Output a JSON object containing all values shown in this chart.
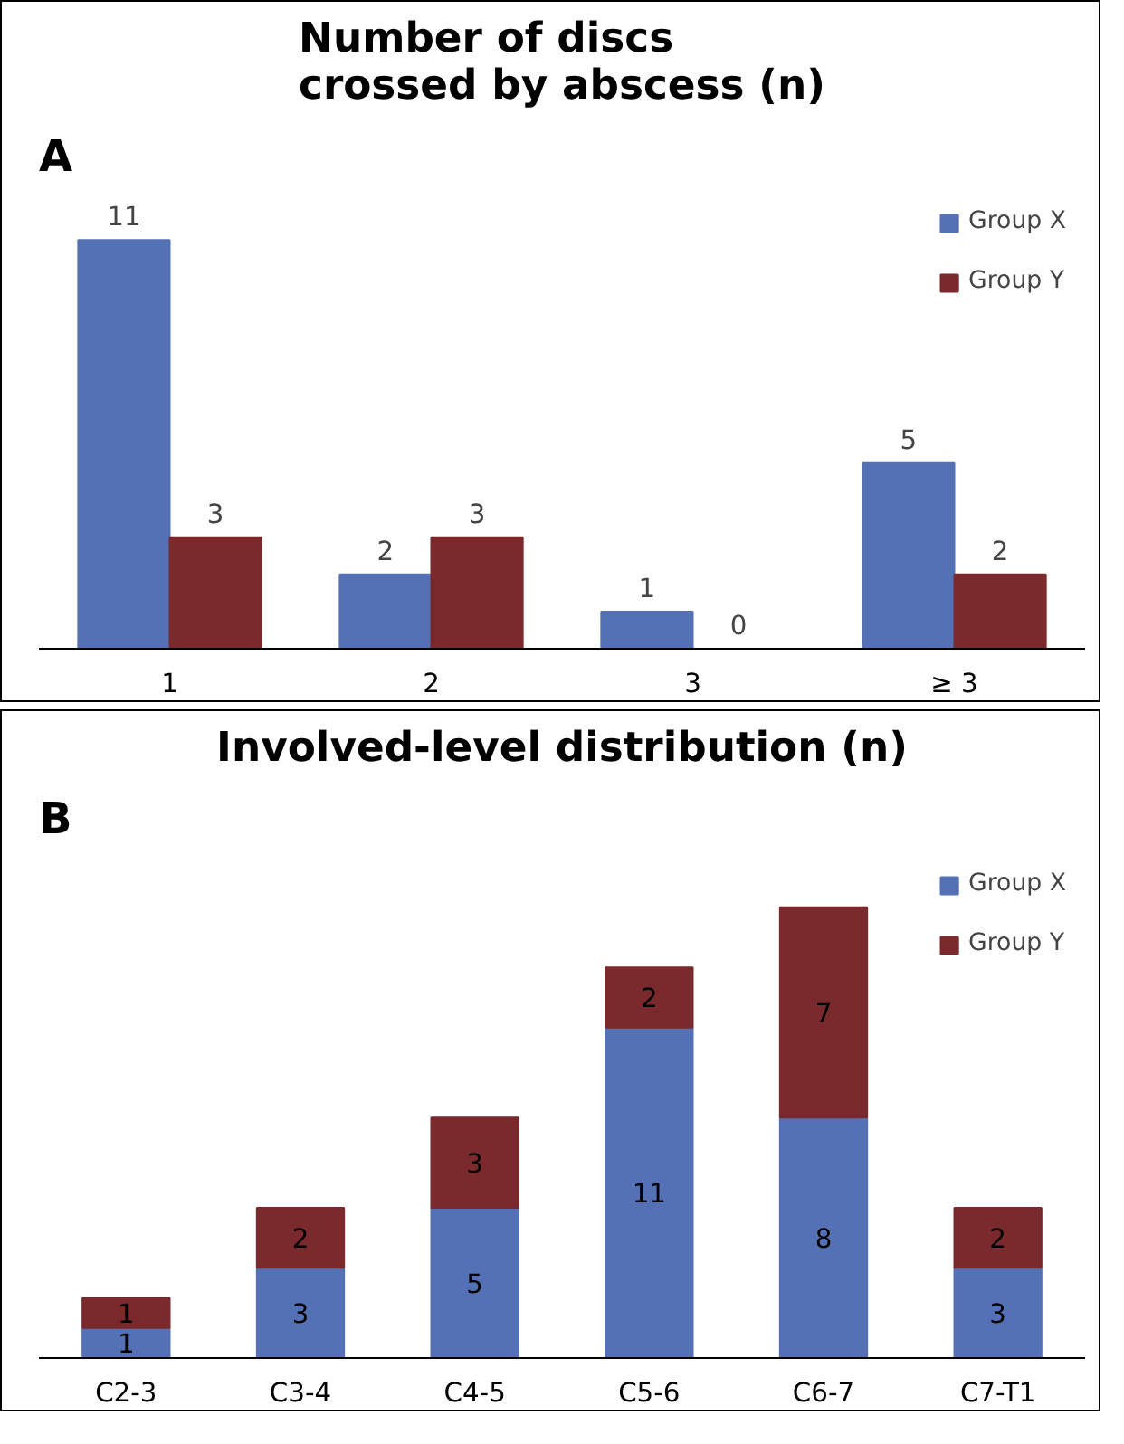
{
  "chart_data": [
    {
      "type": "bar",
      "title": "Number of discs\ncrossed by abscess (n)",
      "annotations": [
        "A"
      ],
      "categories": [
        "1",
        "2",
        "3",
        "≥ 3"
      ],
      "series": [
        {
          "name": "Group X",
          "color": "#5571b6",
          "values": [
            11,
            2,
            1,
            5
          ]
        },
        {
          "name": "Group Y",
          "color": "#7a2a2d",
          "values": [
            3,
            3,
            0,
            2
          ]
        }
      ],
      "data_labels": true,
      "legend": "top right",
      "grid": false
    },
    {
      "type": "bar",
      "stacked": true,
      "title": "Involved-level distribution (n)",
      "annotations": [
        "B"
      ],
      "categories": [
        "C2-3",
        "C3-4",
        "C4-5",
        "C5-6",
        "C6-7",
        "C7-T1"
      ],
      "series": [
        {
          "name": "Group X",
          "color": "#5571b6",
          "values": [
            1,
            3,
            5,
            11,
            8,
            3
          ]
        },
        {
          "name": "Group Y",
          "color": "#7a2a2d",
          "values": [
            1,
            2,
            3,
            2,
            7,
            2
          ]
        }
      ],
      "data_labels": true,
      "legend": "top right",
      "grid": false
    }
  ]
}
